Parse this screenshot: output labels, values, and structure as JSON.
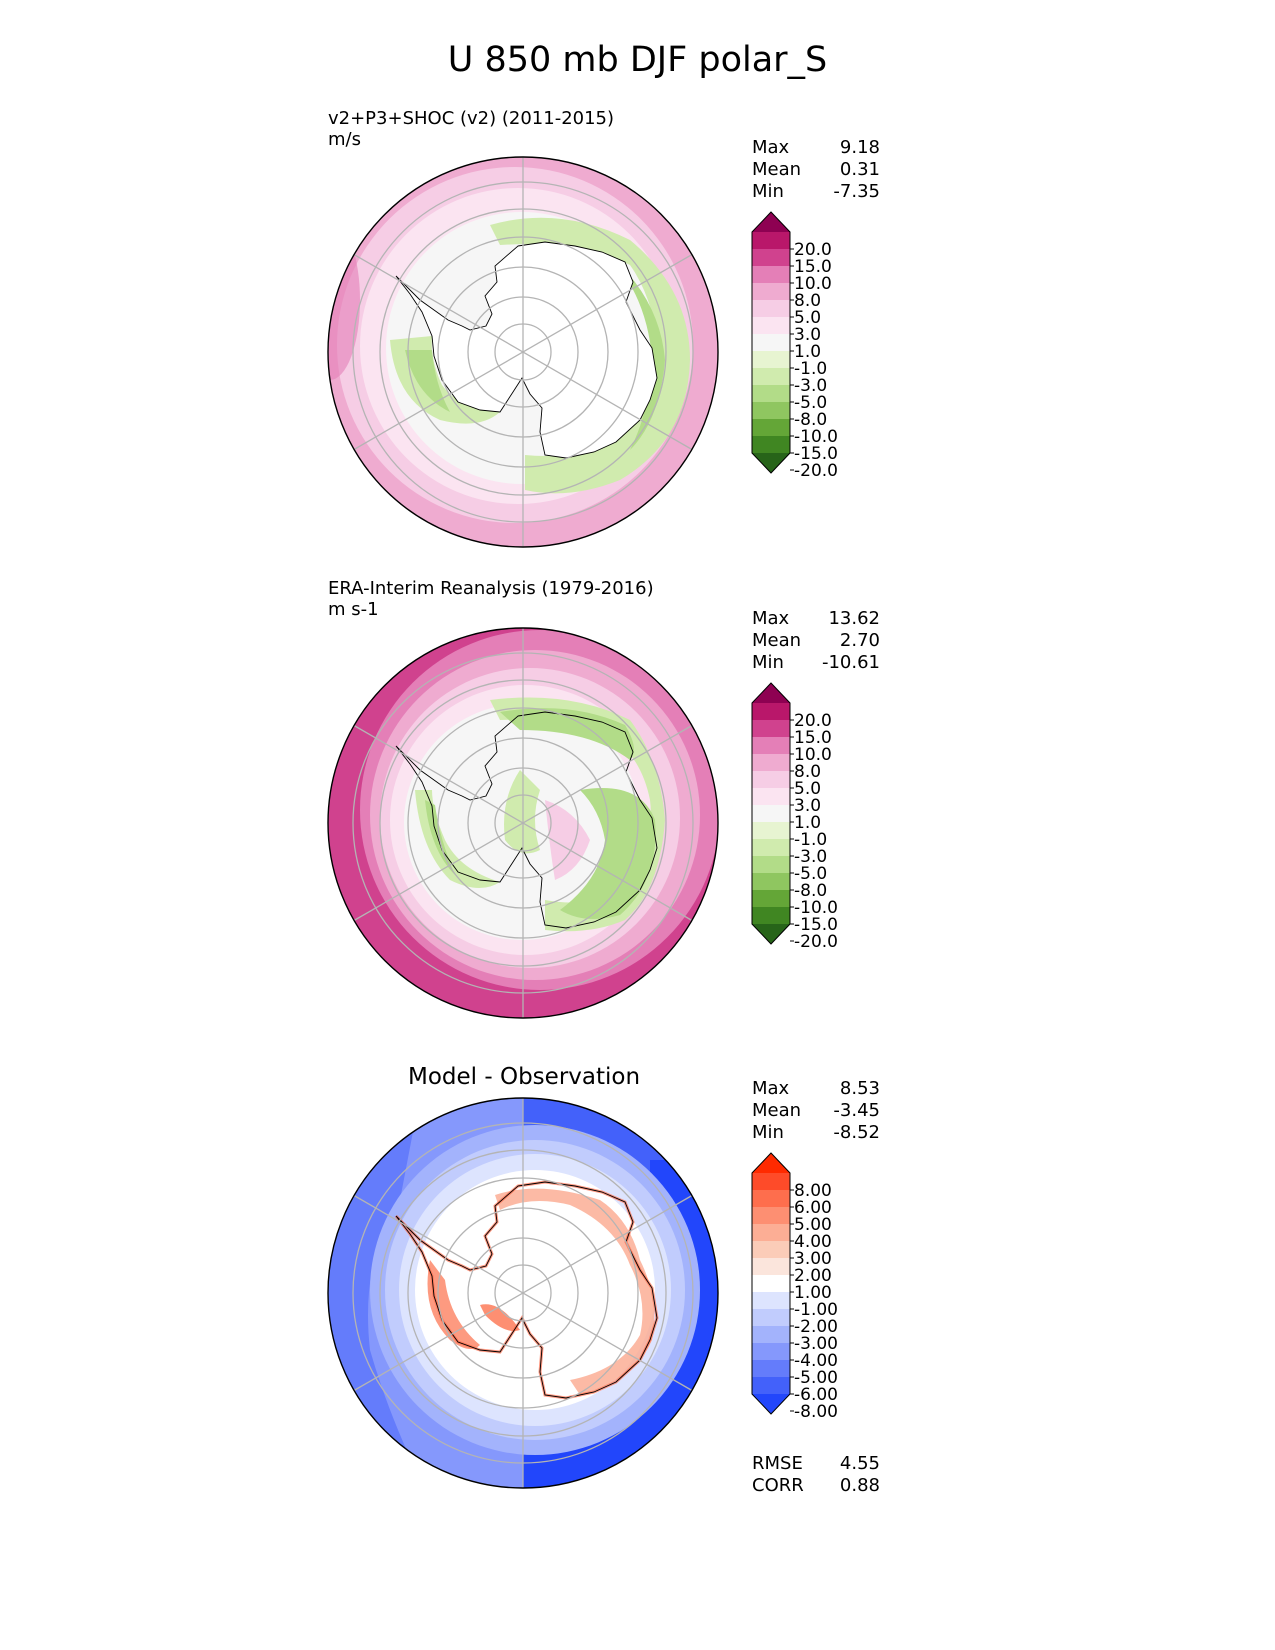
{
  "figure_title": "U 850 mb DJF polar_S",
  "panels": [
    {
      "id": "test",
      "title": "v2+P3+SHOC (v2) (2011-2015)",
      "units": "m/s",
      "stats": [
        {
          "label": "Max",
          "value": "9.18"
        },
        {
          "label": "Mean",
          "value": "0.31"
        },
        {
          "label": "Min",
          "value": "-7.35"
        }
      ],
      "colorbar": {
        "labels": [
          "20.0",
          "15.0",
          "10.0",
          "8.0",
          "5.0",
          "3.0",
          "1.0",
          "-1.0",
          "-3.0",
          "-5.0",
          "-8.0",
          "-10.0",
          "-15.0",
          "-20.0"
        ],
        "colors": [
          "#8e0152",
          "#b9176a",
          "#d0428e",
          "#e47fb7",
          "#efabd0",
          "#f6cde5",
          "#fbe4f1",
          "#f6f6f6",
          "#e7f4d1",
          "#d0ebae",
          "#b2dc88",
          "#8fc660",
          "#64a637",
          "#408622",
          "#276419"
        ]
      }
    },
    {
      "id": "reference",
      "title": "ERA-Interim Reanalysis (1979-2016)",
      "units": "m s-1",
      "stats": [
        {
          "label": "Max",
          "value": "13.62"
        },
        {
          "label": "Mean",
          "value": "2.70"
        },
        {
          "label": "Min",
          "value": "-10.61"
        }
      ],
      "colorbar": {
        "labels": [
          "20.0",
          "15.0",
          "10.0",
          "8.0",
          "5.0",
          "3.0",
          "1.0",
          "-1.0",
          "-3.0",
          "-5.0",
          "-8.0",
          "-10.0",
          "-15.0",
          "-20.0"
        ],
        "colors": [
          "#8e0152",
          "#b9176a",
          "#d0428e",
          "#e47fb7",
          "#efabd0",
          "#f6cde5",
          "#fbe4f1",
          "#f6f6f6",
          "#e7f4d1",
          "#d0ebae",
          "#b2dc88",
          "#8fc660",
          "#64a637",
          "#408622",
          "#276419"
        ]
      }
    },
    {
      "id": "difference",
      "title": "Model - Observation",
      "stats": [
        {
          "label": "Max",
          "value": "8.53"
        },
        {
          "label": "Mean",
          "value": "-3.45"
        },
        {
          "label": "Min",
          "value": "-8.52"
        }
      ],
      "extra_stats": [
        {
          "label": "RMSE",
          "value": "4.55"
        },
        {
          "label": "CORR",
          "value": "0.88"
        }
      ],
      "colorbar": {
        "labels": [
          "8.00",
          "6.00",
          "5.00",
          "4.00",
          "3.00",
          "2.00",
          "1.00",
          "-1.00",
          "-2.00",
          "-3.00",
          "-4.00",
          "-5.00",
          "-6.00",
          "-8.00"
        ],
        "colors": [
          "#ff2a00",
          "#fe4b29",
          "#fe6e4d",
          "#fd8f72",
          "#fcae95",
          "#fbccb8",
          "#fbe5dc",
          "#ffffff",
          "#dde4fe",
          "#c1ccfd",
          "#a3b3fc",
          "#8598fc",
          "#647cfb",
          "#4361fa",
          "#2246fb"
        ]
      }
    }
  ]
}
